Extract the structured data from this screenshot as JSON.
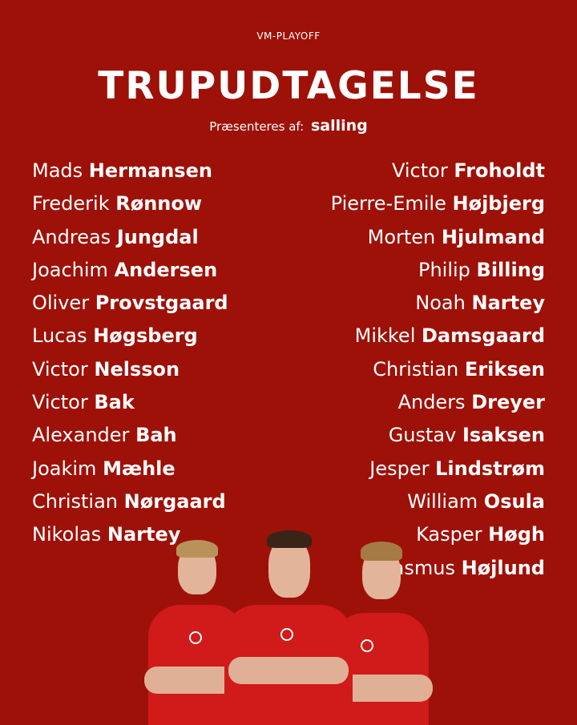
{
  "header": {
    "kicker": "VM-PLAYOFF",
    "title": "TRUPUDTAGELSE",
    "sponsor_prefix": "Præsenteres af:",
    "sponsor_logo": "salling"
  },
  "colors": {
    "background": "#9e1108",
    "text": "#ffffff",
    "shirt": "#d11a1a"
  },
  "left_column": [
    {
      "first": "Mads",
      "last": "Hermansen"
    },
    {
      "first": "Frederik",
      "last": "Rønnow"
    },
    {
      "first": "Andreas",
      "last": "Jungdal"
    },
    {
      "first": "Joachim",
      "last": "Andersen"
    },
    {
      "first": "Oliver",
      "last": "Provstgaard"
    },
    {
      "first": "Lucas",
      "last": "Høgsberg"
    },
    {
      "first": "Victor",
      "last": "Nelsson"
    },
    {
      "first": "Victor",
      "last": "Bak"
    },
    {
      "first": "Alexander",
      "last": "Bah"
    },
    {
      "first": "Joakim",
      "last": "Mæhle"
    },
    {
      "first": "Christian",
      "last": "Nørgaard"
    },
    {
      "first": "Nikolas",
      "last": "Nartey"
    }
  ],
  "right_column": [
    {
      "first": "Victor",
      "last": "Froholdt"
    },
    {
      "first": "Pierre-Emile",
      "last": "Højbjerg"
    },
    {
      "first": "Morten",
      "last": "Hjulmand"
    },
    {
      "first": "Philip",
      "last": "Billing"
    },
    {
      "first": "Noah",
      "last": "Nartey"
    },
    {
      "first": "Mikkel",
      "last": "Damsgaard"
    },
    {
      "first": "Christian",
      "last": "Eriksen"
    },
    {
      "first": "Anders",
      "last": "Dreyer"
    },
    {
      "first": "Gustav",
      "last": "Isaksen"
    },
    {
      "first": "Jesper",
      "last": "Lindstrøm"
    },
    {
      "first": "William",
      "last": "Osula"
    },
    {
      "first": "Kasper",
      "last": "Høgh"
    },
    {
      "first": "Rasmus",
      "last": "Højlund"
    }
  ]
}
